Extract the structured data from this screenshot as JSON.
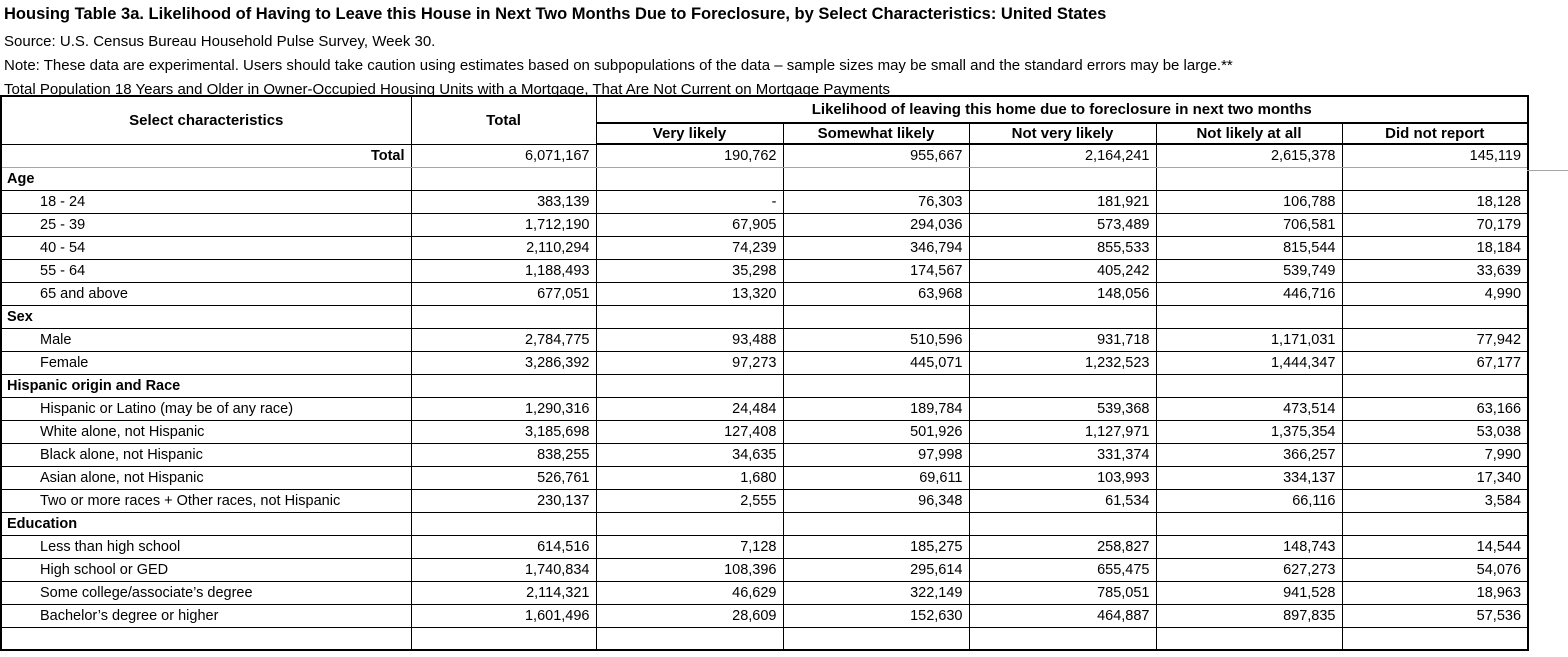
{
  "header": {
    "title": "Housing Table 3a. Likelihood of Having to Leave this House in Next Two Months Due to Foreclosure, by Select Characteristics: United States",
    "source": "Source: U.S. Census Bureau Household Pulse Survey, Week 30.",
    "note": "Note: These data are experimental. Users should take caution using estimates based on subpopulations of the data – sample sizes may be small and the standard errors may be large.**",
    "subtitle": "Total Population 18 Years and Older in Owner-Occupied Housing Units with a Mortgage, That Are Not Current on Mortgage Payments"
  },
  "table": {
    "col_headers": {
      "select_characteristics": "Select characteristics",
      "total": "Total",
      "likelihood_group": "Likelihood of leaving this home due to foreclosure in next two months",
      "sub": [
        "Very likely",
        "Somewhat likely",
        "Not very likely",
        "Not likely at all",
        "Did not report"
      ]
    },
    "column_keys": [
      "total",
      "very-likely",
      "somewhat-likely",
      "not-very-likely",
      "not-likely-at-all",
      "did-not-report"
    ],
    "rows": [
      {
        "type": "total",
        "label": "Total",
        "values": [
          "6,071,167",
          "190,762",
          "955,667",
          "2,164,241",
          "2,615,378",
          "145,119"
        ]
      },
      {
        "type": "section",
        "label": "Age",
        "values": [
          "",
          "",
          "",
          "",
          "",
          ""
        ]
      },
      {
        "type": "data",
        "label": "18 - 24",
        "values": [
          "383,139",
          "-",
          "76,303",
          "181,921",
          "106,788",
          "18,128"
        ]
      },
      {
        "type": "data",
        "label": "25 - 39",
        "values": [
          "1,712,190",
          "67,905",
          "294,036",
          "573,489",
          "706,581",
          "70,179"
        ]
      },
      {
        "type": "data",
        "label": "40 - 54",
        "values": [
          "2,110,294",
          "74,239",
          "346,794",
          "855,533",
          "815,544",
          "18,184"
        ]
      },
      {
        "type": "data",
        "label": "55 - 64",
        "values": [
          "1,188,493",
          "35,298",
          "174,567",
          "405,242",
          "539,749",
          "33,639"
        ]
      },
      {
        "type": "data",
        "label": "65 and above",
        "values": [
          "677,051",
          "13,320",
          "63,968",
          "148,056",
          "446,716",
          "4,990"
        ]
      },
      {
        "type": "section",
        "label": "Sex",
        "values": [
          "",
          "",
          "",
          "",
          "",
          ""
        ]
      },
      {
        "type": "data",
        "label": "Male",
        "values": [
          "2,784,775",
          "93,488",
          "510,596",
          "931,718",
          "1,171,031",
          "77,942"
        ]
      },
      {
        "type": "data",
        "label": "Female",
        "values": [
          "3,286,392",
          "97,273",
          "445,071",
          "1,232,523",
          "1,444,347",
          "67,177"
        ]
      },
      {
        "type": "section",
        "label": "Hispanic origin and Race",
        "values": [
          "",
          "",
          "",
          "",
          "",
          ""
        ]
      },
      {
        "type": "data",
        "label": "Hispanic or Latino (may be of any race)",
        "values": [
          "1,290,316",
          "24,484",
          "189,784",
          "539,368",
          "473,514",
          "63,166"
        ]
      },
      {
        "type": "data",
        "label": "White alone, not Hispanic",
        "values": [
          "3,185,698",
          "127,408",
          "501,926",
          "1,127,971",
          "1,375,354",
          "53,038"
        ]
      },
      {
        "type": "data",
        "label": "Black alone, not Hispanic",
        "values": [
          "838,255",
          "34,635",
          "97,998",
          "331,374",
          "366,257",
          "7,990"
        ]
      },
      {
        "type": "data",
        "label": "Asian alone, not Hispanic",
        "values": [
          "526,761",
          "1,680",
          "69,611",
          "103,993",
          "334,137",
          "17,340"
        ]
      },
      {
        "type": "data",
        "label": "Two or more races + Other races, not Hispanic",
        "values": [
          "230,137",
          "2,555",
          "96,348",
          "61,534",
          "66,116",
          "3,584"
        ]
      },
      {
        "type": "section",
        "label": "Education",
        "values": [
          "",
          "",
          "",
          "",
          "",
          ""
        ]
      },
      {
        "type": "data",
        "label": "Less than high school",
        "values": [
          "614,516",
          "7,128",
          "185,275",
          "258,827",
          "148,743",
          "14,544"
        ]
      },
      {
        "type": "data",
        "label": "High school or GED",
        "values": [
          "1,740,834",
          "108,396",
          "295,614",
          "655,475",
          "627,273",
          "54,076"
        ]
      },
      {
        "type": "data",
        "label": "Some college/associate’s degree",
        "values": [
          "2,114,321",
          "46,629",
          "322,149",
          "785,051",
          "941,528",
          "18,963"
        ]
      },
      {
        "type": "data",
        "label": "Bachelor’s degree or higher",
        "values": [
          "1,601,496",
          "28,609",
          "152,630",
          "464,887",
          "897,835",
          "57,536"
        ]
      },
      {
        "type": "partial",
        "label": "",
        "values": [
          "",
          "",
          "",
          "",
          "",
          ""
        ]
      }
    ]
  }
}
